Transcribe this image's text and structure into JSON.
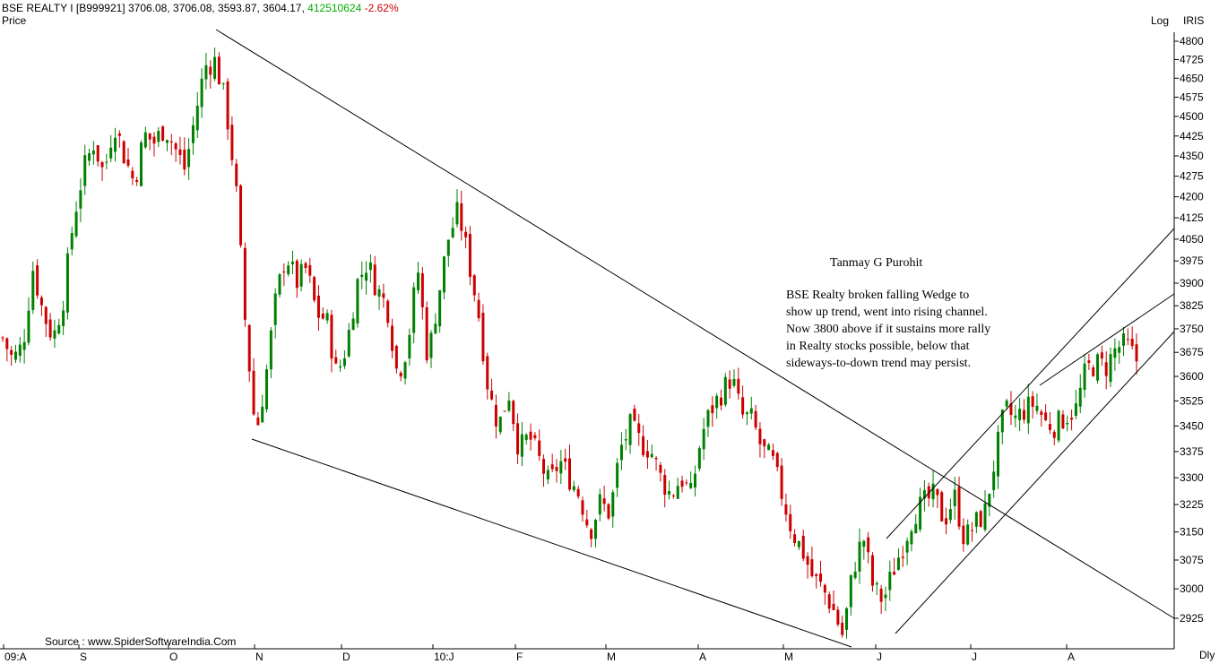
{
  "header": {
    "symbol_line": "BSE REALTY I [B999921] 3706.08, 3706.08, 3593.87, 3604.17,",
    "volume": "412510624",
    "change": "-2.62%",
    "price_label": "Price",
    "log_label": "Log",
    "iris_label": "IRIS",
    "period_label": "Dly"
  },
  "annotation": {
    "author": "Tanmay G Purohit",
    "lines": [
      "BSE Realty broken falling Wedge to",
      "show up trend, went into rising channel.",
      "Now 3800 above if it sustains more rally",
      "in Realty stocks possible, below that",
      "sideways-to-down trend may persist."
    ]
  },
  "source": "Source : www.SpiderSoftwareIndia.Com",
  "colors": {
    "up": "#008000",
    "down": "#cc0000",
    "volume": "#00aa00",
    "change": "#cc0000",
    "lines": "#000000"
  },
  "chart_data": {
    "type": "candlestick",
    "y_scale": "log",
    "ylim": [
      2860,
      4850
    ],
    "y_ticks": [
      4800,
      4725,
      4650,
      4575,
      4500,
      4425,
      4350,
      4275,
      4200,
      4125,
      4050,
      3975,
      3900,
      3825,
      3750,
      3675,
      3600,
      3525,
      3450,
      3375,
      3300,
      3225,
      3150,
      3075,
      3000,
      2925
    ],
    "x_tick_labels": [
      "09:A",
      "S",
      "O",
      "N",
      "D",
      "10:J",
      "F",
      "M",
      "A",
      "M",
      "J",
      "J",
      "A"
    ],
    "series_sketch_close": [
      3720,
      3650,
      3700,
      3950,
      3800,
      3720,
      3850,
      4120,
      4300,
      4400,
      4280,
      4480,
      4350,
      4250,
      4430,
      4400,
      4460,
      4380,
      4300,
      4500,
      4700,
      4720,
      4550,
      4250,
      3750,
      3420,
      3600,
      3850,
      4000,
      3900,
      3950,
      3800,
      3780,
      3600,
      3700,
      3900,
      3970,
      3880,
      3820,
      3600,
      3700,
      3950,
      3650,
      3850,
      4050,
      4150,
      3980,
      3800,
      3550,
      3450,
      3550,
      3380,
      3420,
      3350,
      3280,
      3350,
      3300,
      3250,
      3150,
      3230,
      3200,
      3380,
      3450,
      3400,
      3380,
      3300,
      3250,
      3300,
      3250,
      3420,
      3500,
      3550,
      3600,
      3480,
      3470,
      3380,
      3350,
      3250,
      3150,
      3100,
      3030,
      3000,
      2950,
      2880,
      3050,
      3140,
      3000,
      2970,
      3050,
      3120,
      3200,
      3230,
      3250,
      3180,
      3250,
      3130,
      3170,
      3200,
      3350,
      3500,
      3470,
      3500,
      3520,
      3460,
      3450,
      3480,
      3500,
      3620,
      3640,
      3630,
      3690,
      3700,
      3650
    ],
    "trendlines": [
      {
        "name": "wedge-upper",
        "from": {
          "bar": 20,
          "price": 4810
        },
        "to": {
          "bar": "end",
          "price": 2935
        }
      },
      {
        "name": "wedge-lower",
        "from": {
          "bar": 24,
          "price": 3420
        },
        "to": {
          "bar": "jun-low",
          "price": 2880
        }
      },
      {
        "name": "channel-upper-1",
        "from": {
          "bar": "jun-start",
          "price": 3150
        },
        "to": {
          "bar": "end",
          "price": 4080
        }
      },
      {
        "name": "channel-upper-2",
        "from": {
          "bar": "aug-start",
          "price": 3560
        },
        "to": {
          "bar": "end",
          "price": 3850
        }
      },
      {
        "name": "channel-lower",
        "from": {
          "bar": "jun-low",
          "price": 2900
        },
        "to": {
          "bar": "end",
          "price": 3730
        }
      }
    ]
  }
}
